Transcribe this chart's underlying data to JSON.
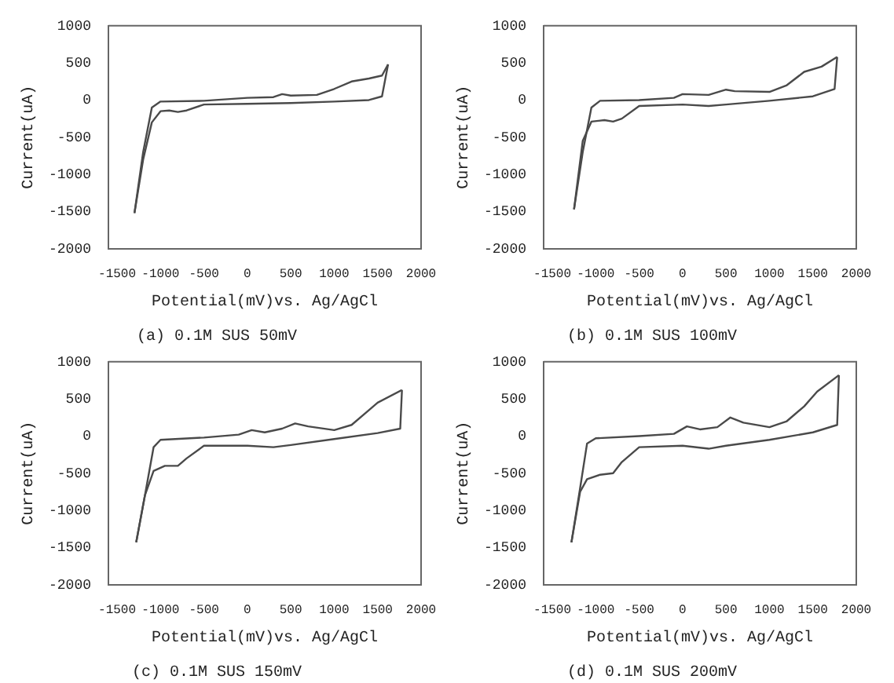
{
  "chart_data": [
    {
      "type": "line",
      "title": "(a) 0.1M SUS 50mV",
      "xlabel": "Potential(mV)vs. Ag/AgCl",
      "ylabel": "Current(uA)",
      "xlim": [
        -1600,
        2000
      ],
      "ylim": [
        -2000,
        1000
      ],
      "xticks": [
        -1500,
        -1000,
        -500,
        0,
        500,
        1000,
        1500,
        2000
      ],
      "yticks": [
        -2000,
        -1500,
        -1000,
        -500,
        0,
        500,
        1000
      ],
      "marker": "none",
      "series": [
        {
          "color": "#4a4a4a",
          "x": [
            -1300,
            -1200,
            -1100,
            -1000,
            -500,
            0,
            300,
            400,
            500,
            800,
            1000,
            1200,
            1400,
            1550,
            1620
          ],
          "values": [
            -1520,
            -700,
            -100,
            -20,
            -10,
            30,
            40,
            80,
            60,
            70,
            150,
            250,
            290,
            330,
            480
          ]
        },
        {
          "color": "#4a4a4a",
          "x": [
            -1300,
            -1200,
            -1100,
            -1000,
            -900,
            -800,
            -700,
            -500,
            0,
            500,
            1000,
            1400,
            1550,
            1620
          ],
          "values": [
            -1520,
            -800,
            -300,
            -150,
            -140,
            -160,
            -140,
            -60,
            -50,
            -40,
            -20,
            0,
            50,
            480
          ]
        }
      ]
    },
    {
      "type": "line",
      "title": "(b) 0.1M SUS 100mV",
      "xlabel": "Potential(mV)vs. Ag/AgCl",
      "ylabel": "Current(uA)",
      "xlim": [
        -1600,
        2000
      ],
      "ylim": [
        -2000,
        1000
      ],
      "xticks": [
        -1500,
        -1000,
        -500,
        0,
        500,
        1000,
        1500,
        2000
      ],
      "yticks": [
        -2000,
        -1500,
        -1000,
        -500,
        0,
        500,
        1000
      ],
      "marker": "none",
      "series": [
        {
          "color": "#4a4a4a",
          "x": [
            -1250,
            -1150,
            -1050,
            -950,
            -500,
            -100,
            0,
            300,
            500,
            600,
            1000,
            1200,
            1400,
            1600,
            1780
          ],
          "values": [
            -1470,
            -700,
            -100,
            -10,
            0,
            30,
            80,
            70,
            140,
            120,
            110,
            200,
            380,
            450,
            580
          ]
        },
        {
          "color": "#4a4a4a",
          "x": [
            -1250,
            -1150,
            -1050,
            -900,
            -800,
            -700,
            -500,
            0,
            300,
            500,
            1000,
            1500,
            1750,
            1780
          ],
          "values": [
            -1470,
            -550,
            -290,
            -270,
            -290,
            -250,
            -80,
            -60,
            -80,
            -60,
            -10,
            50,
            150,
            580
          ]
        }
      ]
    },
    {
      "type": "line",
      "title": "(c) 0.1M SUS 150mV",
      "xlabel": "Potential(mV)vs. Ag/AgCl",
      "ylabel": "Current(uA)",
      "xlim": [
        -1600,
        2000
      ],
      "ylim": [
        -2000,
        1000
      ],
      "xticks": [
        -1500,
        -1000,
        -500,
        0,
        500,
        1000,
        1500,
        2000
      ],
      "yticks": [
        -2000,
        -1500,
        -1000,
        -500,
        0,
        500,
        1000
      ],
      "marker": "none",
      "series": [
        {
          "color": "#4a4a4a",
          "x": [
            -1280,
            -1180,
            -1080,
            -1000,
            -500,
            -100,
            50,
            200,
            400,
            550,
            700,
            1000,
            1200,
            1400,
            1500,
            1780
          ],
          "values": [
            -1430,
            -800,
            -150,
            -50,
            -20,
            20,
            80,
            50,
            100,
            170,
            130,
            80,
            150,
            350,
            450,
            620
          ]
        },
        {
          "color": "#4a4a4a",
          "x": [
            -1280,
            -1180,
            -1080,
            -950,
            -800,
            -700,
            -500,
            0,
            300,
            500,
            1000,
            1500,
            1760,
            1780
          ],
          "values": [
            -1430,
            -800,
            -470,
            -400,
            -400,
            -300,
            -130,
            -130,
            -150,
            -120,
            -40,
            40,
            100,
            620
          ]
        }
      ]
    },
    {
      "type": "line",
      "title": "(d) 0.1M SUS 200mV",
      "xlabel": "Potential(mV)vs. Ag/AgCl",
      "ylabel": "Current(uA)",
      "xlim": [
        -1600,
        2000
      ],
      "ylim": [
        -2000,
        1000
      ],
      "xticks": [
        -1500,
        -1000,
        -500,
        0,
        500,
        1000,
        1500,
        2000
      ],
      "yticks": [
        -2000,
        -1500,
        -1000,
        -500,
        0,
        500,
        1000
      ],
      "marker": "none",
      "series": [
        {
          "color": "#4a4a4a",
          "x": [
            -1280,
            -1180,
            -1100,
            -1000,
            -500,
            -100,
            50,
            200,
            400,
            550,
            700,
            1000,
            1200,
            1400,
            1550,
            1800
          ],
          "values": [
            -1430,
            -700,
            -100,
            -30,
            0,
            30,
            130,
            90,
            120,
            250,
            180,
            120,
            200,
            400,
            600,
            820
          ]
        },
        {
          "color": "#4a4a4a",
          "x": [
            -1280,
            -1180,
            -1100,
            -950,
            -800,
            -700,
            -500,
            0,
            300,
            500,
            1000,
            1500,
            1780,
            1800
          ],
          "values": [
            -1430,
            -750,
            -580,
            -520,
            -500,
            -350,
            -150,
            -130,
            -170,
            -130,
            -50,
            50,
            150,
            820
          ]
        }
      ]
    }
  ]
}
